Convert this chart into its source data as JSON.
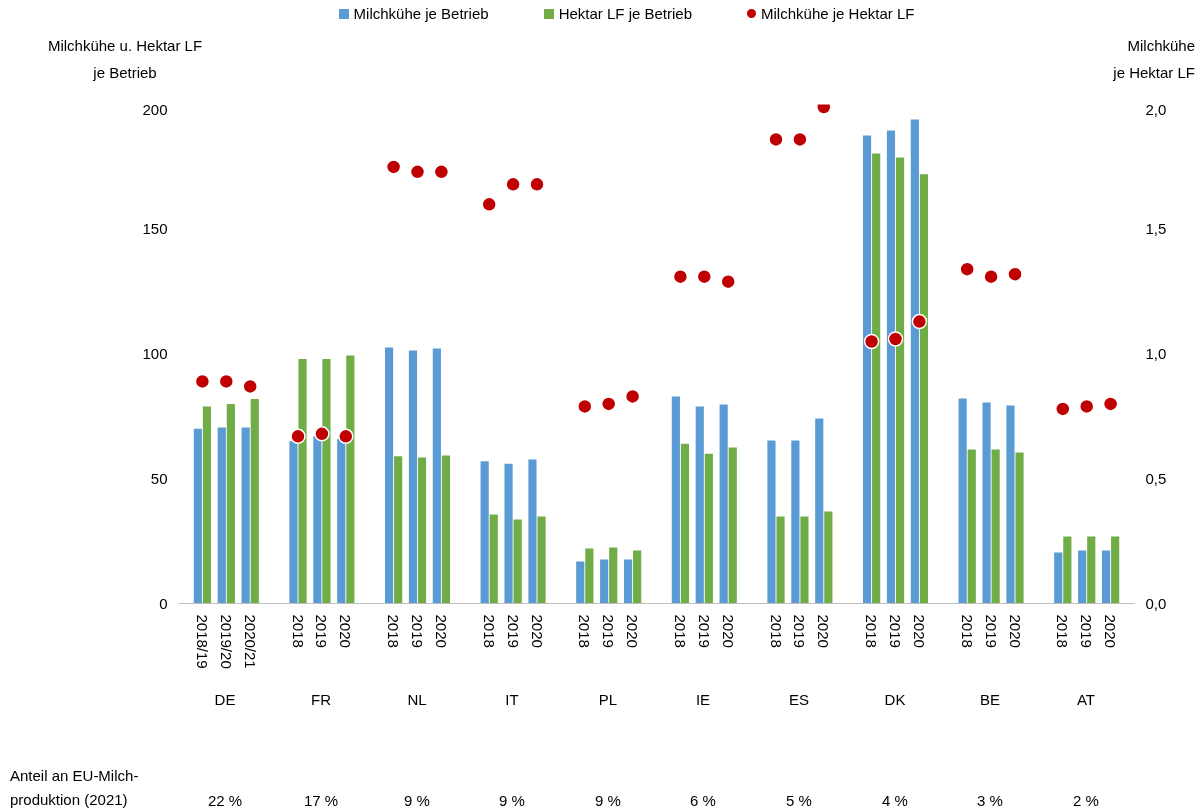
{
  "chart_data": {
    "type": "bar",
    "ylabel": "Milchkühe u. Hektar LF\nje Betrieb",
    "y2label": "Milchkühe\nje Hektar LF",
    "categories": [
      "2018/19",
      "2019/20",
      "2020/21",
      "2018",
      "2019",
      "2020",
      "2018",
      "2019",
      "2020",
      "2018",
      "2019",
      "2020",
      "2018",
      "2019",
      "2020",
      "2018",
      "2019",
      "2020",
      "2018",
      "2019",
      "2020",
      "2018",
      "2019",
      "2020",
      "2018",
      "2019",
      "2020",
      "2018",
      "2019",
      "2020"
    ],
    "series": [
      {
        "name": "Milchkühe je Betrieb",
        "color": "#5b9bd5",
        "values": [
          70,
          70.5,
          70.5,
          65,
          67,
          66,
          102.6,
          101.4,
          102.2,
          57,
          56,
          57.7,
          16.8,
          17.6,
          17.6,
          83,
          79,
          79.8,
          65.3,
          65.3,
          74.1,
          187.6,
          189.6,
          194,
          82.2,
          80.6,
          79.4,
          20.4,
          21.2,
          21.2
        ]
      },
      {
        "name": "Hektar LF je Betrieb",
        "color": "#70ad47",
        "values": [
          79,
          80,
          82,
          98,
          98,
          99.4,
          59,
          58.5,
          59.3,
          35.7,
          33.7,
          34.9,
          22,
          22.4,
          21.2,
          64,
          60,
          62.5,
          34.9,
          34.9,
          36.9,
          180.4,
          178.8,
          172,
          61.7,
          61.7,
          60.5,
          26.9,
          26.9,
          26.9
        ]
      },
      {
        "name": "Milchkühe je Hektar LF",
        "type": "scatter",
        "axis": "y2",
        "color": "#c00000",
        "values": [
          0.89,
          0.89,
          0.87,
          0.67,
          0.68,
          0.67,
          1.75,
          1.73,
          1.73,
          1.6,
          1.68,
          1.68,
          0.79,
          0.8,
          0.83,
          1.31,
          1.31,
          1.29,
          1.86,
          1.86,
          1.99,
          1.05,
          1.06,
          1.13,
          1.34,
          1.31,
          1.32,
          0.78,
          0.79,
          0.8
        ]
      }
    ],
    "ylim": [
      0,
      200
    ],
    "yticks": [
      0,
      50,
      100,
      150,
      200
    ],
    "y2lim": [
      0,
      2
    ],
    "y2ticks": [
      {
        "value": 0,
        "label": "0,0"
      },
      {
        "value": 0.5,
        "label": "0,5"
      },
      {
        "value": 1,
        "label": "1,0"
      },
      {
        "value": 1.5,
        "label": "1,5"
      },
      {
        "value": 2,
        "label": "2,0"
      }
    ],
    "marker": "circle",
    "grid": false,
    "legend": "top",
    "annotations": [
      "DE",
      "FR",
      "NL",
      "IT",
      "PL",
      "IE",
      "ES",
      "DK",
      "BE",
      "AT",
      "Anteil an EU-Milch-\nproduktion (2021)",
      "22 %",
      "17 %",
      "9 %",
      "9 %",
      "9 %",
      "6 %",
      "5 %",
      "4 %",
      "3 %",
      "2 %"
    ]
  }
}
